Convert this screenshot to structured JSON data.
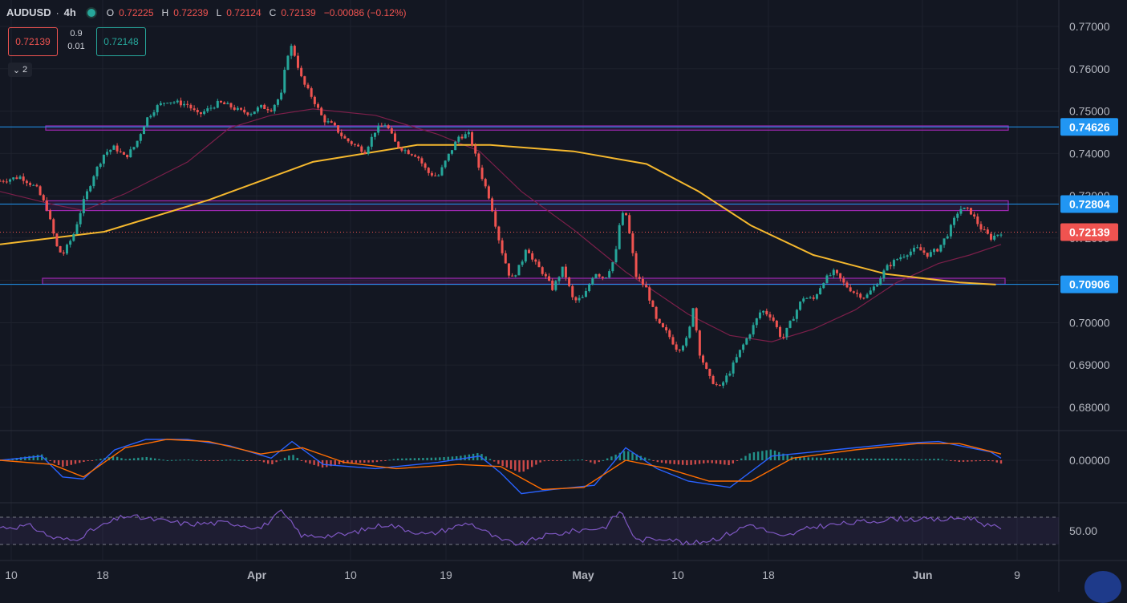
{
  "header": {
    "symbol": "AUDUSD",
    "interval": "4h",
    "ohlc": [
      {
        "label": "O",
        "value": "0.72225"
      },
      {
        "label": "H",
        "value": "0.72239"
      },
      {
        "label": "L",
        "value": "0.72124"
      },
      {
        "label": "C",
        "value": "0.72139"
      }
    ],
    "change": "−0.00086 (−0.12%)",
    "sell_price": "0.72139",
    "buy_price": "0.72148",
    "spread_top": "0.9",
    "spread_bottom": "0.01",
    "collapse_count": "2"
  },
  "colors": {
    "background": "#131722",
    "grid": "#1e222d",
    "up": "#26a69a",
    "down": "#ef5350",
    "ma_long": "#f5b82e",
    "ma_short": "#7c1f4a",
    "level_line": "#2196f3",
    "zone": "#9c27b0",
    "macd": "#2962ff",
    "signal": "#ff6d00",
    "rsi": "#7e57c2"
  },
  "chart_data": {
    "type": "candlestick",
    "symbol": "AUDUSD",
    "interval": "4h",
    "ylim": [
      0.678,
      0.775
    ],
    "y_ticks": [
      "0.77000",
      "0.76000",
      "0.75000",
      "0.74000",
      "0.73000",
      "0.72000",
      "0.71000",
      "0.70000",
      "0.69000",
      "0.68000"
    ],
    "x_ticks": [
      "10",
      "18",
      "Apr",
      "10",
      "19",
      "May",
      "10",
      "18",
      "Jun",
      "9"
    ],
    "price_levels": [
      {
        "label": "0.74626",
        "value": 0.74626
      },
      {
        "label": "0.72804",
        "value": 0.72804
      },
      {
        "label": "0.70906",
        "value": 0.70906
      }
    ],
    "current_price": {
      "label": "0.72139",
      "value": 0.72139
    },
    "zones": [
      {
        "low": 0.7455,
        "high": 0.7465
      },
      {
        "low": 0.7265,
        "high": 0.7288
      },
      {
        "low": 0.7091,
        "high": 0.7105
      }
    ],
    "price_path": [
      [
        0,
        0.7335
      ],
      [
        0.02,
        0.7345
      ],
      [
        0.035,
        0.7318
      ],
      [
        0.045,
        0.727
      ],
      [
        0.055,
        0.7175
      ],
      [
        0.06,
        0.716
      ],
      [
        0.07,
        0.7205
      ],
      [
        0.08,
        0.7285
      ],
      [
        0.09,
        0.735
      ],
      [
        0.1,
        0.74
      ],
      [
        0.11,
        0.7415
      ],
      [
        0.12,
        0.739
      ],
      [
        0.13,
        0.742
      ],
      [
        0.14,
        0.748
      ],
      [
        0.15,
        0.751
      ],
      [
        0.16,
        0.7525
      ],
      [
        0.17,
        0.752
      ],
      [
        0.18,
        0.7515
      ],
      [
        0.19,
        0.749
      ],
      [
        0.2,
        0.7505
      ],
      [
        0.21,
        0.752
      ],
      [
        0.22,
        0.7512
      ],
      [
        0.23,
        0.75
      ],
      [
        0.24,
        0.7495
      ],
      [
        0.25,
        0.751
      ],
      [
        0.26,
        0.7505
      ],
      [
        0.27,
        0.754
      ],
      [
        0.275,
        0.763
      ],
      [
        0.28,
        0.7655
      ],
      [
        0.29,
        0.757
      ],
      [
        0.3,
        0.753
      ],
      [
        0.31,
        0.748
      ],
      [
        0.32,
        0.7465
      ],
      [
        0.33,
        0.7435
      ],
      [
        0.34,
        0.742
      ],
      [
        0.35,
        0.7405
      ],
      [
        0.36,
        0.7455
      ],
      [
        0.37,
        0.747
      ],
      [
        0.38,
        0.742
      ],
      [
        0.39,
        0.7405
      ],
      [
        0.4,
        0.7395
      ],
      [
        0.41,
        0.7355
      ],
      [
        0.42,
        0.7345
      ],
      [
        0.43,
        0.7395
      ],
      [
        0.44,
        0.744
      ],
      [
        0.45,
        0.7445
      ],
      [
        0.46,
        0.736
      ],
      [
        0.47,
        0.729
      ],
      [
        0.48,
        0.718
      ],
      [
        0.49,
        0.71
      ],
      [
        0.5,
        0.714
      ],
      [
        0.505,
        0.7185
      ],
      [
        0.51,
        0.715
      ],
      [
        0.52,
        0.712
      ],
      [
        0.53,
        0.708
      ],
      [
        0.54,
        0.713
      ],
      [
        0.55,
        0.705
      ],
      [
        0.56,
        0.706
      ],
      [
        0.57,
        0.712
      ],
      [
        0.58,
        0.7105
      ],
      [
        0.59,
        0.7155
      ],
      [
        0.595,
        0.725
      ],
      [
        0.6,
        0.726
      ],
      [
        0.605,
        0.719
      ],
      [
        0.61,
        0.711
      ],
      [
        0.62,
        0.708
      ],
      [
        0.63,
        0.7
      ],
      [
        0.64,
        0.6975
      ],
      [
        0.65,
        0.6935
      ],
      [
        0.66,
        0.6965
      ],
      [
        0.665,
        0.7045
      ],
      [
        0.67,
        0.6935
      ],
      [
        0.68,
        0.687
      ],
      [
        0.69,
        0.6845
      ],
      [
        0.7,
        0.6885
      ],
      [
        0.71,
        0.6935
      ],
      [
        0.72,
        0.698
      ],
      [
        0.73,
        0.703
      ],
      [
        0.74,
        0.7015
      ],
      [
        0.75,
        0.696
      ],
      [
        0.76,
        0.701
      ],
      [
        0.77,
        0.706
      ],
      [
        0.78,
        0.7055
      ],
      [
        0.79,
        0.71
      ],
      [
        0.8,
        0.712
      ],
      [
        0.81,
        0.709
      ],
      [
        0.82,
        0.707
      ],
      [
        0.83,
        0.706
      ],
      [
        0.84,
        0.709
      ],
      [
        0.85,
        0.713
      ],
      [
        0.86,
        0.715
      ],
      [
        0.87,
        0.7165
      ],
      [
        0.88,
        0.7175
      ],
      [
        0.89,
        0.716
      ],
      [
        0.9,
        0.7175
      ],
      [
        0.91,
        0.7215
      ],
      [
        0.92,
        0.727
      ],
      [
        0.93,
        0.7265
      ],
      [
        0.94,
        0.7225
      ],
      [
        0.95,
        0.72
      ],
      [
        0.96,
        0.7214
      ]
    ],
    "ma_long_path": [
      [
        0,
        0.7185
      ],
      [
        0.1,
        0.7215
      ],
      [
        0.2,
        0.729
      ],
      [
        0.3,
        0.738
      ],
      [
        0.4,
        0.742
      ],
      [
        0.47,
        0.742
      ],
      [
        0.55,
        0.7405
      ],
      [
        0.62,
        0.7375
      ],
      [
        0.67,
        0.731
      ],
      [
        0.72,
        0.723
      ],
      [
        0.78,
        0.716
      ],
      [
        0.85,
        0.7115
      ],
      [
        0.92,
        0.7095
      ],
      [
        0.955,
        0.709
      ]
    ],
    "ma_short_path": [
      [
        0,
        0.731
      ],
      [
        0.05,
        0.728
      ],
      [
        0.08,
        0.7265
      ],
      [
        0.12,
        0.7305
      ],
      [
        0.18,
        0.738
      ],
      [
        0.22,
        0.746
      ],
      [
        0.26,
        0.749
      ],
      [
        0.3,
        0.7505
      ],
      [
        0.36,
        0.749
      ],
      [
        0.42,
        0.7445
      ],
      [
        0.46,
        0.7405
      ],
      [
        0.5,
        0.731
      ],
      [
        0.55,
        0.722
      ],
      [
        0.6,
        0.712
      ],
      [
        0.66,
        0.702
      ],
      [
        0.7,
        0.697
      ],
      [
        0.74,
        0.6955
      ],
      [
        0.78,
        0.6985
      ],
      [
        0.82,
        0.703
      ],
      [
        0.86,
        0.7095
      ],
      [
        0.9,
        0.714
      ],
      [
        0.93,
        0.716
      ],
      [
        0.96,
        0.7185
      ]
    ],
    "macd": {
      "zero_label": "0.00000",
      "macd_path": [
        [
          0,
          0
        ],
        [
          0.04,
          0.2
        ],
        [
          0.06,
          -0.8
        ],
        [
          0.08,
          -0.9
        ],
        [
          0.11,
          0.5
        ],
        [
          0.14,
          1.0
        ],
        [
          0.18,
          1.0
        ],
        [
          0.22,
          0.7
        ],
        [
          0.26,
          0.1
        ],
        [
          0.28,
          0.9
        ],
        [
          0.31,
          -0.2
        ],
        [
          0.36,
          -0.4
        ],
        [
          0.42,
          -0.1
        ],
        [
          0.46,
          0.2
        ],
        [
          0.48,
          -0.6
        ],
        [
          0.5,
          -1.6
        ],
        [
          0.53,
          -1.4
        ],
        [
          0.57,
          -1.2
        ],
        [
          0.6,
          0.6
        ],
        [
          0.63,
          -0.4
        ],
        [
          0.66,
          -1.0
        ],
        [
          0.7,
          -1.3
        ],
        [
          0.74,
          0.2
        ],
        [
          0.8,
          0.5
        ],
        [
          0.86,
          0.8
        ],
        [
          0.9,
          0.9
        ],
        [
          0.95,
          0.4
        ],
        [
          0.96,
          0.1
        ]
      ],
      "signal_path": [
        [
          0,
          0
        ],
        [
          0.05,
          -0.2
        ],
        [
          0.08,
          -0.8
        ],
        [
          0.12,
          0.6
        ],
        [
          0.16,
          1.0
        ],
        [
          0.2,
          0.9
        ],
        [
          0.25,
          0.3
        ],
        [
          0.29,
          0.6
        ],
        [
          0.33,
          -0.1
        ],
        [
          0.38,
          -0.4
        ],
        [
          0.44,
          -0.2
        ],
        [
          0.48,
          -0.3
        ],
        [
          0.52,
          -1.4
        ],
        [
          0.56,
          -1.3
        ],
        [
          0.6,
          0.0
        ],
        [
          0.64,
          -0.4
        ],
        [
          0.68,
          -1.0
        ],
        [
          0.72,
          -1.0
        ],
        [
          0.76,
          0.1
        ],
        [
          0.82,
          0.5
        ],
        [
          0.88,
          0.8
        ],
        [
          0.92,
          0.8
        ],
        [
          0.96,
          0.3
        ]
      ],
      "range": [
        -1.8,
        1.2
      ]
    },
    "rsi": {
      "level_label": "50.00",
      "upper": 70,
      "lower": 30,
      "path": [
        [
          0,
          55
        ],
        [
          0.03,
          57
        ],
        [
          0.05,
          40
        ],
        [
          0.07,
          36
        ],
        [
          0.09,
          52
        ],
        [
          0.12,
          72
        ],
        [
          0.15,
          66
        ],
        [
          0.18,
          60
        ],
        [
          0.22,
          62
        ],
        [
          0.25,
          54
        ],
        [
          0.27,
          78
        ],
        [
          0.29,
          42
        ],
        [
          0.33,
          44
        ],
        [
          0.37,
          60
        ],
        [
          0.41,
          44
        ],
        [
          0.45,
          62
        ],
        [
          0.48,
          36
        ],
        [
          0.5,
          30
        ],
        [
          0.52,
          42
        ],
        [
          0.56,
          52
        ],
        [
          0.58,
          55
        ],
        [
          0.595,
          80
        ],
        [
          0.61,
          36
        ],
        [
          0.64,
          40
        ],
        [
          0.66,
          30
        ],
        [
          0.69,
          40
        ],
        [
          0.72,
          60
        ],
        [
          0.75,
          40
        ],
        [
          0.78,
          56
        ],
        [
          0.82,
          62
        ],
        [
          0.86,
          68
        ],
        [
          0.9,
          66
        ],
        [
          0.93,
          70
        ],
        [
          0.95,
          56
        ],
        [
          0.96,
          54
        ]
      ]
    }
  }
}
